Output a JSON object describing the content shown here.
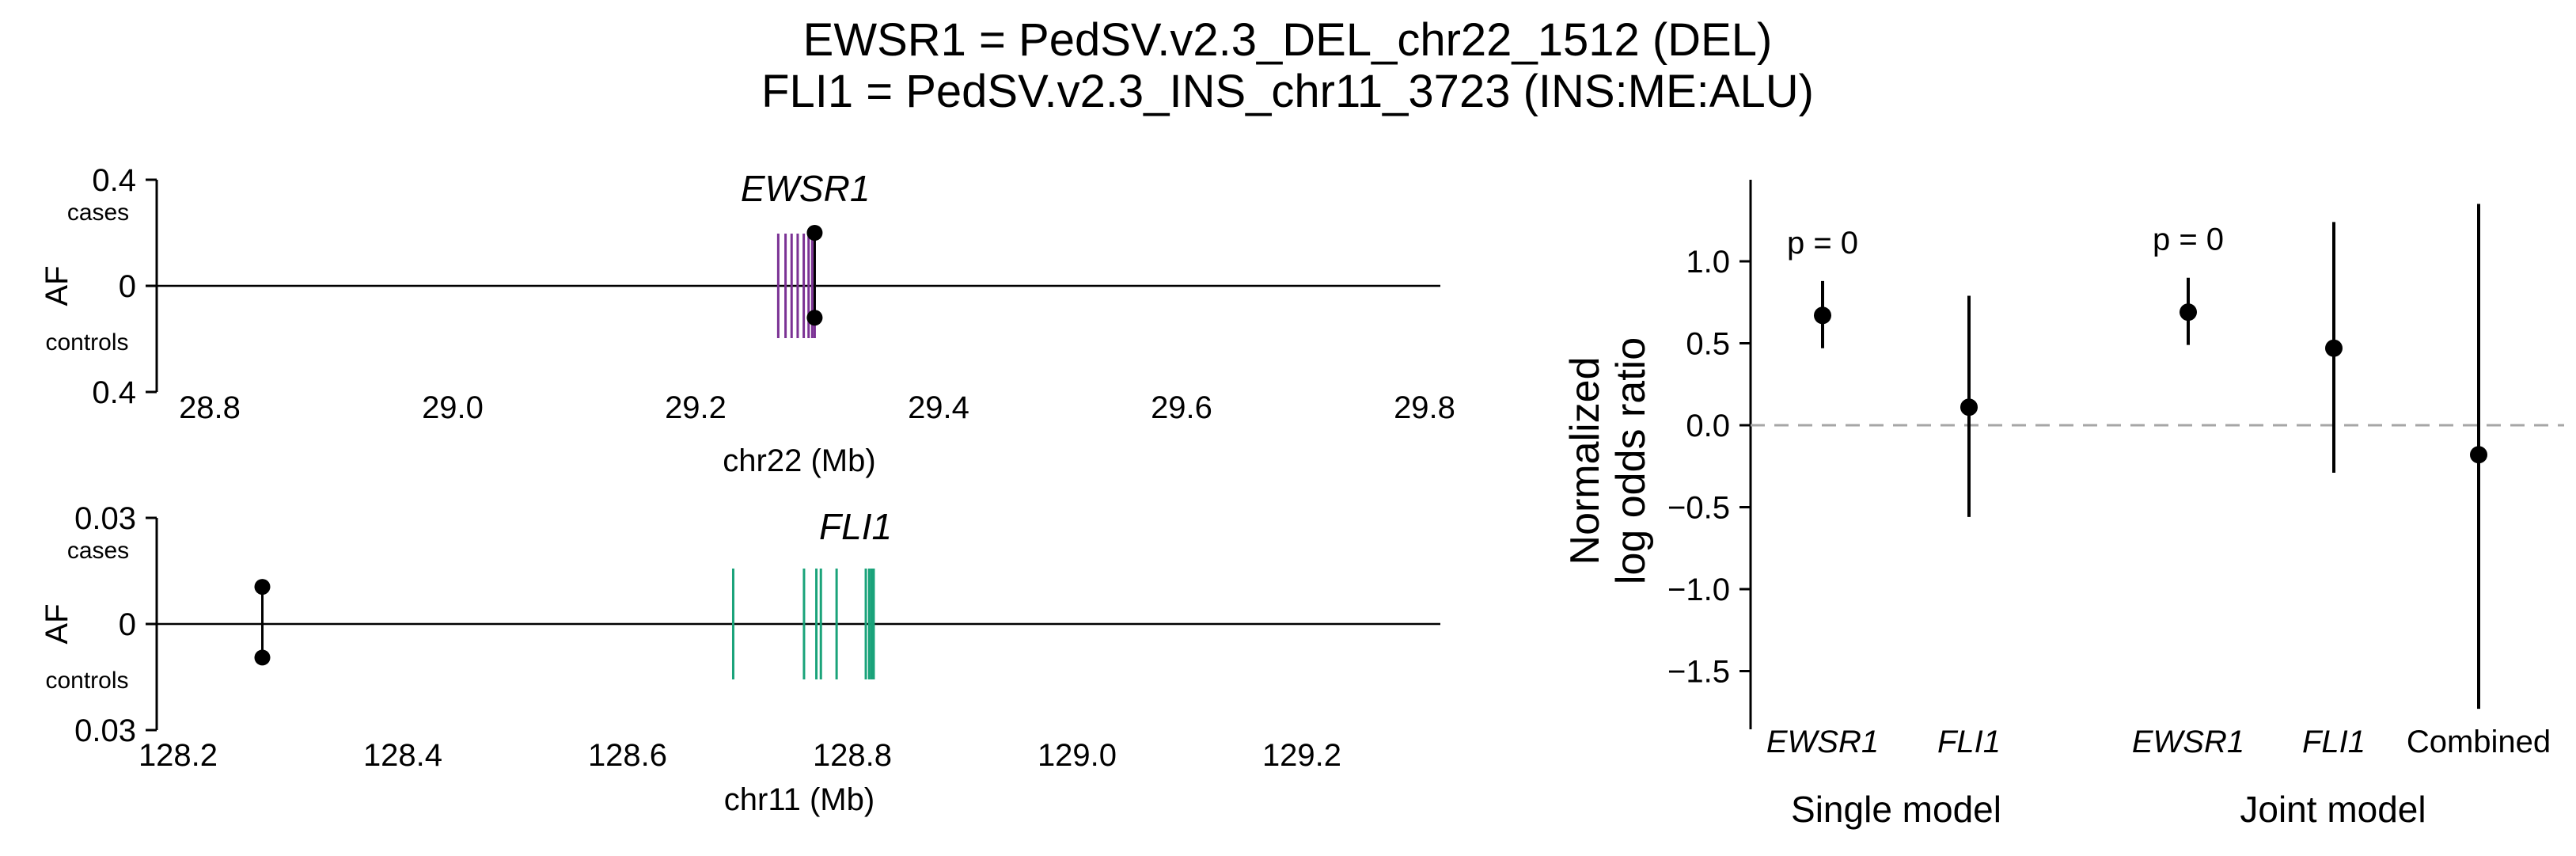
{
  "title_lines": [
    "EWSR1 = PedSV.v2.3_DEL_chr22_1512 (DEL)",
    "FLI1 = PedSV.v2.3_INS_chr11_3723 (INS:ME:ALU)"
  ],
  "chart_data": [
    {
      "type": "scatter",
      "panel": "EWSR1 locus",
      "gene_label": "EWSR1",
      "xlabel": "chr22 (Mb)",
      "ylabel": "AF",
      "x_ticks": [
        "28.8",
        "29.0",
        "29.2",
        "29.4",
        "29.6",
        "29.8"
      ],
      "xlim": [
        28.75,
        29.8
      ],
      "y_ticks": [
        "0.4",
        "0",
        "0.4"
      ],
      "ylim": [
        -0.4,
        0.4
      ],
      "cases_label": "cases",
      "controls_label": "controls",
      "gene_color": "#7B3294",
      "exon_positions": [
        29.268,
        29.274,
        29.279,
        29.284,
        29.289,
        29.293,
        29.296,
        29.298
      ],
      "points": {
        "x": 29.298,
        "case_af": 0.2,
        "control_af": 0.12
      }
    },
    {
      "type": "scatter",
      "panel": "FLI1 locus",
      "gene_label": "FLI1",
      "xlabel": "chr11 (Mb)",
      "ylabel": "AF",
      "x_ticks": [
        "128.2",
        "128.4",
        "128.6",
        "128.8",
        "129.0",
        "129.2"
      ],
      "xlim": [
        128.2,
        129.33
      ],
      "y_ticks": [
        "0.03",
        "0",
        "0.03"
      ],
      "ylim": [
        -0.03,
        0.03
      ],
      "cases_label": "cases",
      "controls_label": "controls",
      "gene_color": "#1AA37A",
      "exon_positions": [
        128.694,
        128.757,
        128.768,
        128.772,
        128.786,
        128.812,
        128.815,
        128.817,
        128.818,
        128.819
      ],
      "points": {
        "x": 128.275,
        "case_af": 0.0105,
        "control_af": 0.0095
      }
    },
    {
      "type": "scatter",
      "panel": "odds ratios",
      "ylabel": "Normalized\nlog odds ratio",
      "ylim": [
        -1.85,
        1.48
      ],
      "y_ticks": [
        1.0,
        0.5,
        0.0,
        -0.5,
        -1.0,
        -1.5
      ],
      "y_tick_labels": [
        "1.0",
        "0.5",
        "0.0",
        "−0.5",
        "−1.0",
        "−1.5"
      ],
      "reference_line": 0.0,
      "reference_style": "dashed gray",
      "groups": [
        {
          "name": "Single model",
          "points": [
            {
              "label": "EWSR1",
              "italic": true,
              "estimate": 0.67,
              "lower": 0.47,
              "upper": 0.88,
              "annotation": "p = 0"
            },
            {
              "label": "FLI1",
              "italic": true,
              "estimate": 0.11,
              "lower": -0.56,
              "upper": 0.79
            }
          ]
        },
        {
          "name": "Joint model",
          "points": [
            {
              "label": "EWSR1",
              "italic": true,
              "estimate": 0.69,
              "lower": 0.49,
              "upper": 0.9,
              "annotation": "p = 0"
            },
            {
              "label": "FLI1",
              "italic": true,
              "estimate": 0.47,
              "lower": -0.29,
              "upper": 1.24
            },
            {
              "label": "Combined",
              "italic": false,
              "estimate": -0.18,
              "lower": -1.73,
              "upper": 1.35
            }
          ]
        }
      ]
    }
  ]
}
